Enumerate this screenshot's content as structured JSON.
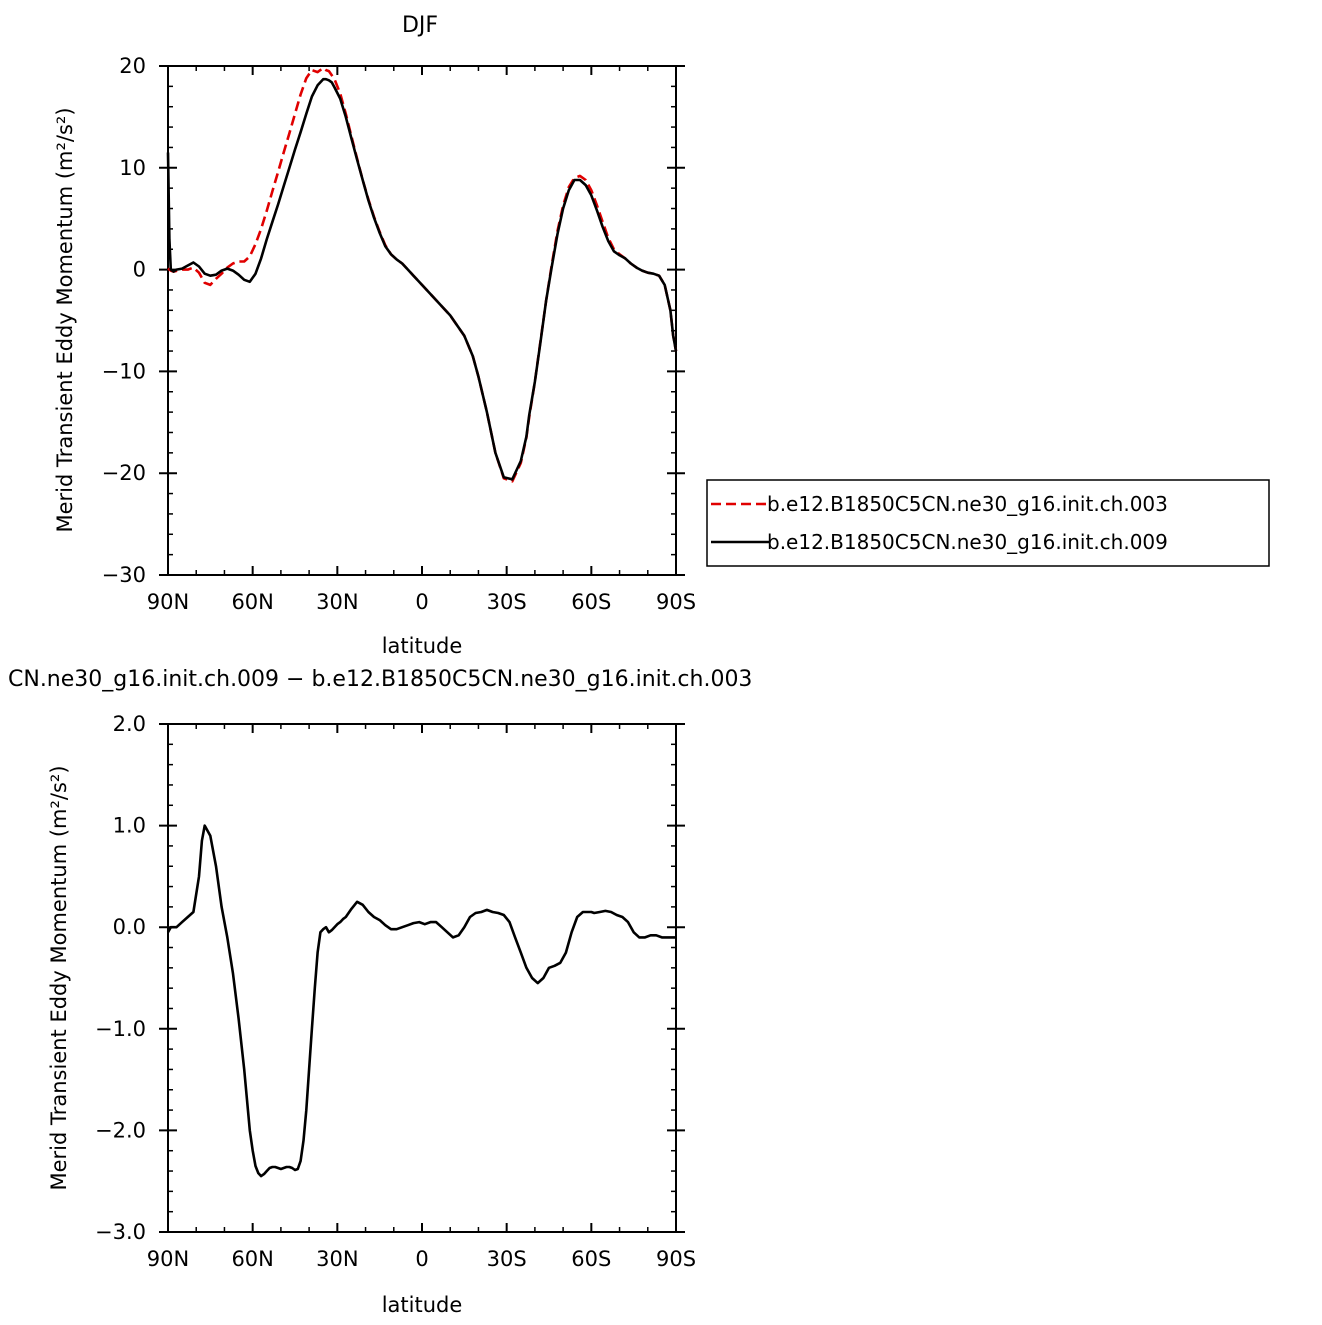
{
  "chart_data": [
    {
      "type": "line",
      "title": "DJF",
      "xlabel": "latitude",
      "ylabel": "Merid Transient Eddy Momentum (m²/s²)",
      "xlim": [
        90,
        -90
      ],
      "ylim": [
        -30,
        20
      ],
      "x_tick_labels": [
        "90N",
        "60N",
        "30N",
        "0",
        "30S",
        "60S",
        "90S"
      ],
      "x_tick_values": [
        90,
        60,
        30,
        0,
        -30,
        -60,
        -90
      ],
      "y_tick_labels": [
        "−30",
        "−20",
        "−10",
        "0",
        "10",
        "20"
      ],
      "y_tick_values": [
        -30,
        -20,
        -10,
        0,
        10,
        20
      ],
      "grid": false,
      "legend_position": "right",
      "series": [
        {
          "name": "b.e12.B1850C5CN.ne30_g16.init.ch.003",
          "color": "#e00000",
          "style": "dashed",
          "x": [
            90,
            89,
            88,
            85,
            83,
            81,
            79,
            77,
            75,
            73,
            71,
            69,
            67,
            65,
            63,
            61,
            59,
            57,
            55,
            53,
            51,
            49,
            47,
            45,
            43,
            41,
            39,
            37,
            35,
            34,
            33,
            31,
            29,
            27,
            25,
            23,
            21,
            19,
            17,
            15,
            13,
            11,
            9,
            7,
            5,
            3,
            0,
            -5,
            -10,
            -15,
            -18,
            -20,
            -23,
            -26,
            -29,
            -32,
            -35,
            -37,
            -38,
            -40,
            -42,
            -44,
            -46,
            -48,
            -50,
            -52,
            -54,
            -56,
            -58,
            -60,
            -62,
            -64,
            -66,
            -68,
            -70,
            -72,
            -74,
            -76,
            -78,
            -80,
            -82,
            -84,
            -86,
            -88,
            -89,
            -90
          ],
          "y": [
            0.1,
            -0.1,
            -0.2,
            0.0,
            0.0,
            0.2,
            -0.3,
            -1.3,
            -1.5,
            -0.9,
            -0.4,
            0.2,
            0.6,
            0.8,
            0.8,
            1.3,
            2.5,
            4.0,
            5.8,
            7.7,
            9.6,
            11.5,
            13.4,
            15.3,
            17.2,
            18.8,
            19.6,
            19.4,
            19.8,
            19.6,
            19.5,
            18.7,
            17.3,
            15.3,
            13.1,
            10.9,
            8.8,
            6.9,
            5.2,
            3.7,
            2.4,
            1.5,
            1.0,
            0.6,
            0.0,
            -0.6,
            -1.5,
            -3.0,
            -4.5,
            -6.5,
            -8.5,
            -10.5,
            -14.0,
            -18.0,
            -20.5,
            -20.8,
            -19.0,
            -16.5,
            -14.5,
            -11.0,
            -7.0,
            -3.0,
            0.5,
            3.8,
            6.3,
            8.1,
            9.0,
            9.2,
            8.8,
            7.8,
            6.3,
            4.7,
            3.1,
            2.0,
            1.5,
            1.1,
            0.6,
            0.2,
            -0.1,
            -0.3,
            -0.4,
            -0.6,
            -1.5,
            -4.0,
            -6.5,
            -8.0
          ]
        },
        {
          "name": "b.e12.B1850C5CN.ne30_g16.init.ch.009",
          "color": "#000000",
          "style": "solid",
          "x": [
            90,
            89.5,
            89,
            88,
            87,
            85,
            83,
            81,
            79,
            77,
            75,
            73,
            71,
            69,
            67,
            65,
            63,
            61,
            59,
            57,
            55,
            53,
            51,
            49,
            47,
            45,
            43,
            41,
            39,
            37,
            35,
            34,
            33,
            32,
            31,
            29,
            27,
            25,
            23,
            21,
            19,
            17,
            15,
            13,
            11,
            9,
            7,
            5,
            3,
            0,
            -5,
            -10,
            -15,
            -18,
            -20,
            -23,
            -26,
            -29,
            -32,
            -35,
            -37,
            -38,
            -40,
            -42,
            -44,
            -46,
            -48,
            -50,
            -52,
            -54,
            -56,
            -58,
            -60,
            -62,
            -64,
            -66,
            -68,
            -70,
            -72,
            -74,
            -76,
            -78,
            -80,
            -82,
            -84,
            -86,
            -88,
            -89,
            -90
          ],
          "y": [
            11.5,
            3.0,
            0.0,
            -0.2,
            0.0,
            0.1,
            0.4,
            0.7,
            0.3,
            -0.4,
            -0.6,
            -0.5,
            -0.1,
            0.1,
            -0.1,
            -0.5,
            -1.0,
            -1.2,
            -0.4,
            1.1,
            3.0,
            4.7,
            6.4,
            8.2,
            10.0,
            11.8,
            13.5,
            15.3,
            17.0,
            18.1,
            18.7,
            18.7,
            18.6,
            18.4,
            17.9,
            16.8,
            15.0,
            12.9,
            10.8,
            8.8,
            6.8,
            5.1,
            3.6,
            2.3,
            1.5,
            1.0,
            0.6,
            0.0,
            -0.6,
            -1.5,
            -3.0,
            -4.5,
            -6.5,
            -8.5,
            -10.5,
            -14.0,
            -18.0,
            -20.4,
            -20.6,
            -18.8,
            -16.4,
            -14.3,
            -11.0,
            -7.1,
            -3.0,
            0.3,
            3.5,
            6.0,
            7.8,
            8.8,
            8.8,
            8.3,
            7.3,
            5.8,
            4.2,
            2.8,
            1.8,
            1.4,
            1.1,
            0.6,
            0.2,
            -0.1,
            -0.3,
            -0.4,
            -0.6,
            -1.5,
            -4.0,
            -6.5,
            -8.0
          ]
        }
      ]
    },
    {
      "type": "line",
      "title": "CN.ne30_g16.init.ch.009 − b.e12.B1850C5CN.ne30_g16.init.ch.003",
      "xlabel": "latitude",
      "ylabel": "Merid Transient Eddy Momentum (m²/s²)",
      "xlim": [
        90,
        -90
      ],
      "ylim": [
        -3.0,
        2.0
      ],
      "x_tick_labels": [
        "90N",
        "60N",
        "30N",
        "0",
        "30S",
        "60S",
        "90S"
      ],
      "x_tick_values": [
        90,
        60,
        30,
        0,
        -30,
        -60,
        -90
      ],
      "y_tick_labels": [
        "−3.0",
        "−2.0",
        "−1.0",
        "0.0",
        "1.0",
        "2.0"
      ],
      "y_tick_values": [
        -3.0,
        -2.0,
        -1.0,
        0.0,
        1.0,
        2.0
      ],
      "grid": false,
      "series": [
        {
          "name": "",
          "color": "#000000",
          "style": "solid",
          "x": [
            90,
            89,
            87,
            85,
            83,
            81,
            79,
            78,
            77,
            75,
            73,
            71,
            69,
            67,
            65,
            63,
            62,
            61,
            60,
            59,
            58,
            57,
            56,
            55,
            54,
            53,
            52,
            51,
            50,
            49,
            48,
            47,
            46,
            45,
            44,
            43,
            42,
            41,
            40,
            39,
            38,
            37,
            36,
            35,
            34,
            33,
            32,
            31,
            30,
            29,
            28,
            27,
            25,
            23,
            21,
            19,
            17,
            15,
            13,
            11,
            9,
            7,
            5,
            3,
            1,
            -1,
            -3,
            -5,
            -7,
            -9,
            -11,
            -13,
            -15,
            -17,
            -19,
            -21,
            -23,
            -25,
            -27,
            -29,
            -31,
            -33,
            -35,
            -37,
            -39,
            -41,
            -43,
            -45,
            -47,
            -49,
            -51,
            -53,
            -55,
            -57,
            -59,
            -60,
            -61,
            -63,
            -65,
            -67,
            -69,
            -71,
            -73,
            -75,
            -77,
            -79,
            -81,
            -83,
            -85,
            -87,
            -88,
            -89,
            -90
          ],
          "y": [
            -0.05,
            0.0,
            0.0,
            0.05,
            0.1,
            0.15,
            0.5,
            0.85,
            1.0,
            0.9,
            0.6,
            0.2,
            -0.1,
            -0.45,
            -0.9,
            -1.4,
            -1.7,
            -2.0,
            -2.2,
            -2.35,
            -2.42,
            -2.45,
            -2.43,
            -2.4,
            -2.37,
            -2.36,
            -2.36,
            -2.37,
            -2.38,
            -2.37,
            -2.36,
            -2.36,
            -2.37,
            -2.39,
            -2.38,
            -2.3,
            -2.1,
            -1.8,
            -1.4,
            -1.0,
            -0.6,
            -0.25,
            -0.05,
            -0.02,
            0.0,
            -0.05,
            -0.03,
            0.0,
            0.03,
            0.05,
            0.08,
            0.1,
            0.18,
            0.25,
            0.22,
            0.15,
            0.1,
            0.07,
            0.02,
            -0.02,
            -0.02,
            0.0,
            0.02,
            0.04,
            0.05,
            0.03,
            0.05,
            0.05,
            0.0,
            -0.05,
            -0.1,
            -0.08,
            0.0,
            0.1,
            0.14,
            0.15,
            0.17,
            0.15,
            0.14,
            0.12,
            0.05,
            -0.1,
            -0.25,
            -0.4,
            -0.5,
            -0.55,
            -0.5,
            -0.4,
            -0.38,
            -0.35,
            -0.25,
            -0.05,
            0.1,
            0.15,
            0.15,
            0.15,
            0.14,
            0.15,
            0.16,
            0.15,
            0.12,
            0.1,
            0.05,
            -0.05,
            -0.1,
            -0.1,
            -0.08,
            -0.08,
            -0.1,
            -0.1,
            -0.1,
            -0.1,
            -0.1
          ]
        }
      ]
    }
  ]
}
